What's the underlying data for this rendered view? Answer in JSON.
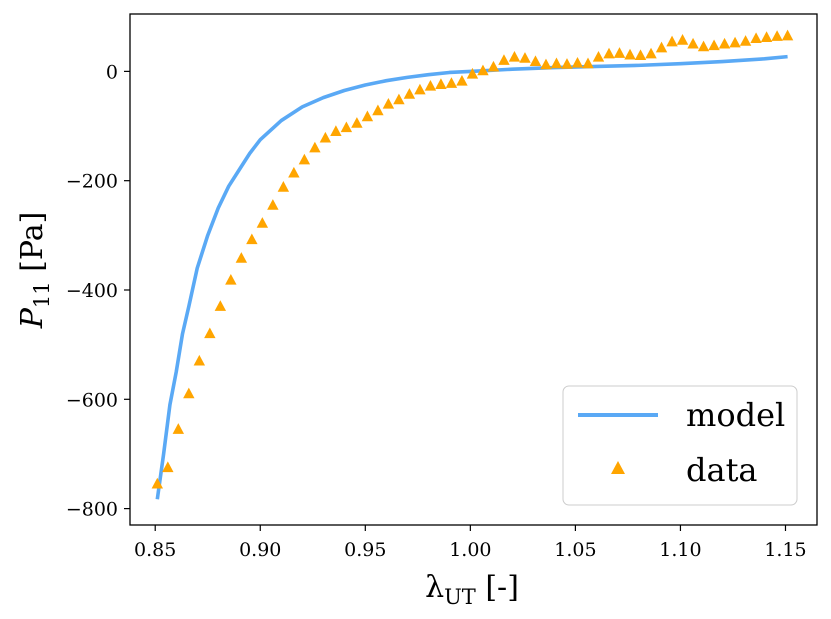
{
  "chart_data": {
    "type": "line",
    "title": "",
    "xlabel": {
      "symbol": "λ",
      "subscript": "UT",
      "unit": " [-]"
    },
    "ylabel": {
      "symbol": "P",
      "subscript": "11",
      "unit": " [Pa]"
    },
    "xlim": [
      0.838,
      1.165
    ],
    "ylim": [
      -830,
      105
    ],
    "xticks": [
      0.85,
      0.9,
      0.95,
      1.0,
      1.05,
      1.1,
      1.15
    ],
    "xtick_labels": [
      "0.85",
      "0.90",
      "0.95",
      "1.00",
      "1.05",
      "1.10",
      "1.15"
    ],
    "yticks": [
      -800,
      -600,
      -400,
      -200,
      0
    ],
    "ytick_labels": [
      "−800",
      "−600",
      "−400",
      "−200",
      "0"
    ],
    "grid": false,
    "legend_position": "bottom-right",
    "colors": {
      "model": "#5aa9f5",
      "data": "#ffa500"
    },
    "series": [
      {
        "name": "model",
        "kind": "line",
        "x": [
          0.851,
          0.854,
          0.857,
          0.86,
          0.863,
          0.866,
          0.87,
          0.875,
          0.88,
          0.885,
          0.89,
          0.895,
          0.9,
          0.91,
          0.92,
          0.93,
          0.94,
          0.95,
          0.96,
          0.97,
          0.98,
          0.99,
          1.0,
          1.02,
          1.04,
          1.06,
          1.08,
          1.1,
          1.12,
          1.14,
          1.151
        ],
        "y": [
          -783,
          -700,
          -610,
          -550,
          -480,
          -430,
          -360,
          -300,
          -250,
          -210,
          -180,
          -150,
          -125,
          -90,
          -65,
          -48,
          -35,
          -25,
          -17,
          -11,
          -6,
          -2,
          0,
          4,
          7,
          9,
          11,
          14,
          18,
          23,
          27
        ]
      },
      {
        "name": "data",
        "kind": "scatter",
        "marker": "triangle",
        "x": [
          0.851,
          0.856,
          0.861,
          0.866,
          0.871,
          0.876,
          0.881,
          0.886,
          0.891,
          0.896,
          0.901,
          0.906,
          0.911,
          0.916,
          0.921,
          0.926,
          0.931,
          0.936,
          0.941,
          0.946,
          0.951,
          0.956,
          0.961,
          0.966,
          0.971,
          0.976,
          0.981,
          0.986,
          0.991,
          0.996,
          1.001,
          1.006,
          1.011,
          1.016,
          1.021,
          1.026,
          1.031,
          1.036,
          1.041,
          1.046,
          1.051,
          1.056,
          1.061,
          1.066,
          1.071,
          1.076,
          1.081,
          1.086,
          1.091,
          1.096,
          1.101,
          1.106,
          1.111,
          1.116,
          1.121,
          1.126,
          1.131,
          1.136,
          1.141,
          1.146,
          1.151
        ],
        "y": [
          -755,
          -725,
          -655,
          -590,
          -530,
          -480,
          -430,
          -382,
          -342,
          -308,
          -278,
          -245,
          -212,
          -186,
          -162,
          -140,
          -122,
          -110,
          -103,
          -95,
          -83,
          -72,
          -60,
          -52,
          -42,
          -34,
          -27,
          -24,
          -22,
          -18,
          -5,
          1,
          8,
          20,
          26,
          24,
          18,
          12,
          14,
          13,
          15,
          14,
          26,
          32,
          33,
          30,
          29,
          32,
          43,
          54,
          57,
          50,
          45,
          47,
          50,
          52,
          55,
          60,
          62,
          64,
          65
        ]
      }
    ]
  }
}
